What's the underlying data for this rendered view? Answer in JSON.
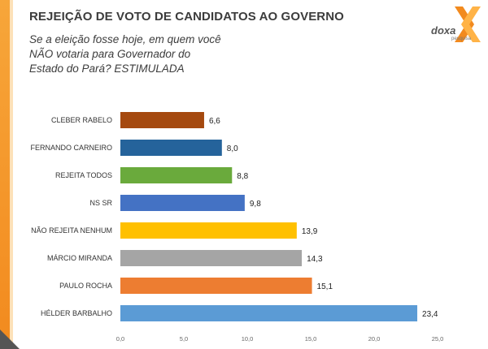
{
  "header": {
    "title": "REJEIÇÃO DE VOTO DE CANDIDATOS AO GOVERNO",
    "question_lines": [
      "Se a eleição fosse hoje, em quem você",
      "NÃO votaria para Governador do",
      "Estado do Pará? ESTIMULADA"
    ]
  },
  "logo": {
    "name": "doxa",
    "subtitle": "pesquisa",
    "icon": "doxa-x-logo-icon"
  },
  "colors": {
    "accent_orange": "#f28a1e"
  },
  "chart_data": {
    "type": "bar",
    "orientation": "horizontal",
    "categories": [
      "CLEBER RABELO",
      "FERNANDO CARNEIRO",
      "REJEITA TODOS",
      "NS SR",
      "NÃO REJEITA NENHUM",
      "MÁRCIO MIRANDA",
      "PAULO ROCHA",
      "HÉLDER BARBALHO"
    ],
    "values": [
      6.6,
      8.0,
      8.8,
      9.8,
      13.9,
      14.3,
      15.1,
      23.4
    ],
    "value_labels": [
      "6,6",
      "8,0",
      "8,8",
      "9,8",
      "13,9",
      "14,3",
      "15,1",
      "23,4"
    ],
    "bar_colors": [
      "#a5490f",
      "#25639b",
      "#6aaa3c",
      "#4472c4",
      "#ffc000",
      "#a5a5a5",
      "#ed7d31",
      "#5b9bd5"
    ],
    "xlim": [
      0,
      25
    ],
    "x_ticks": [
      0,
      5,
      10,
      15,
      20,
      25
    ],
    "x_tick_labels": [
      "0,0",
      "5,0",
      "10,0",
      "15,0",
      "20,0",
      "25,0"
    ],
    "grid": false,
    "legend": "none"
  }
}
